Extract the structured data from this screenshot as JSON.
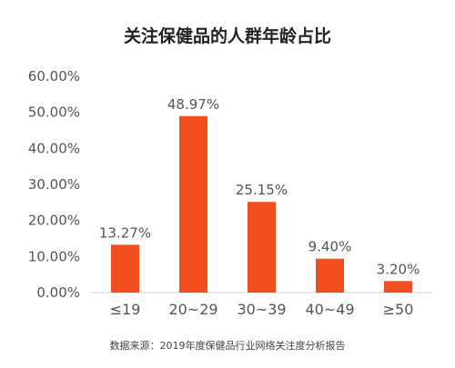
{
  "chart_data": {
    "type": "bar",
    "title": "关注保健品的人群年龄占比",
    "categories": [
      "≤19",
      "20~29",
      "30~39",
      "40~49",
      "≥50"
    ],
    "values": [
      13.27,
      48.97,
      25.15,
      9.4,
      3.2
    ],
    "value_labels": [
      "13.27%",
      "48.97%",
      "25.15%",
      "9.40%",
      "3.20%"
    ],
    "ylim": [
      0,
      60
    ],
    "yticks": [
      0,
      10,
      20,
      30,
      40,
      50,
      60
    ],
    "ytick_labels": [
      "0.00%",
      "10.00%",
      "20.00%",
      "30.00%",
      "40.00%",
      "50.00%",
      "60.00%"
    ],
    "xlabel": "",
    "ylabel": "",
    "grid": false,
    "bar_color": "#f04e1e",
    "axis_color": "#d0d0d0"
  },
  "source_note": "数据来源：2019年度保健品行业网络关注度分析报告"
}
